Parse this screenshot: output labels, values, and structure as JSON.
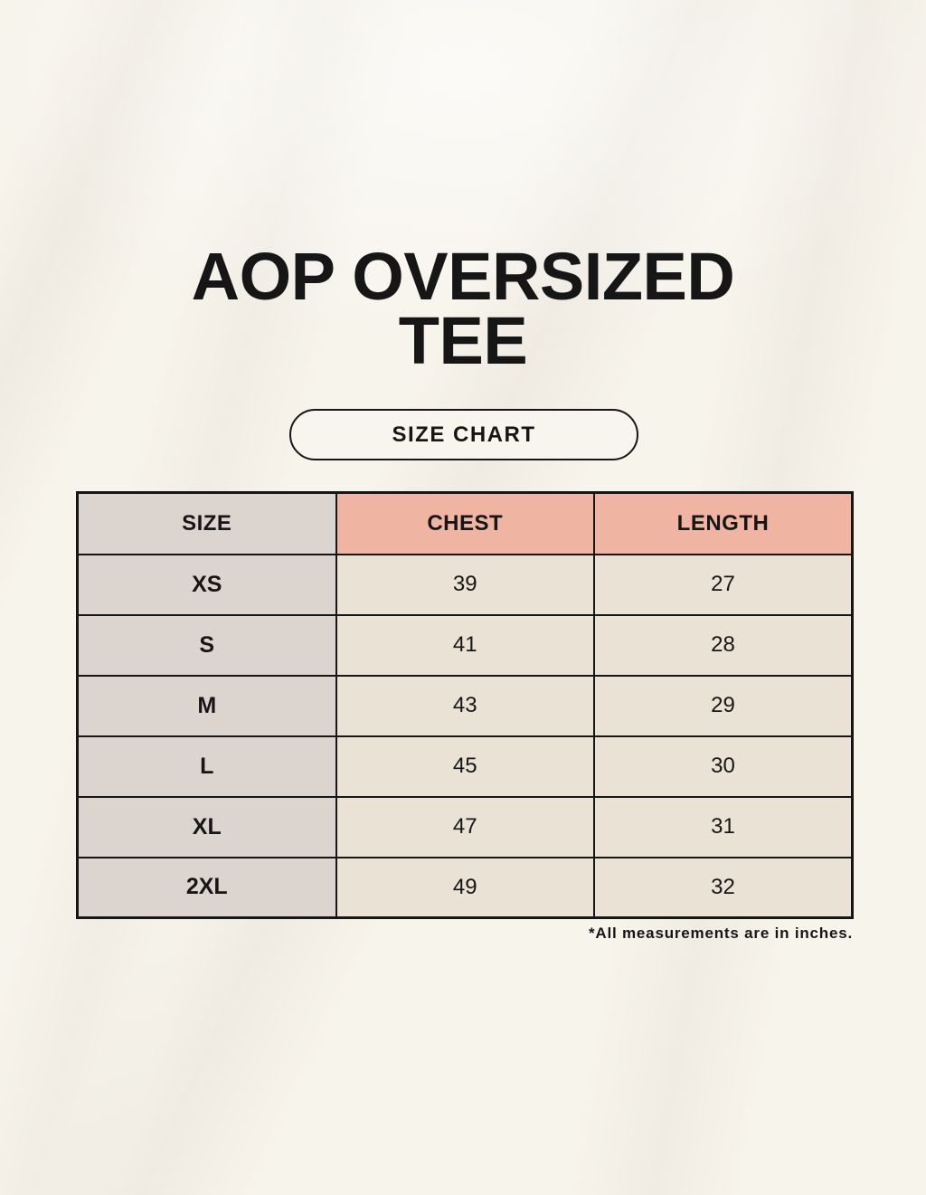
{
  "title": {
    "line1": "AOP OVERSIZED",
    "line2": "TEE"
  },
  "badge": {
    "label": "SIZE CHART"
  },
  "table": {
    "headers": {
      "size": "SIZE",
      "chest": "CHEST",
      "length": "LENGTH"
    },
    "rows": [
      {
        "size": "XS",
        "chest": "39",
        "length": "27"
      },
      {
        "size": "S",
        "chest": "41",
        "length": "28"
      },
      {
        "size": "M",
        "chest": "43",
        "length": "29"
      },
      {
        "size": "L",
        "chest": "45",
        "length": "30"
      },
      {
        "size": "XL",
        "chest": "47",
        "length": "31"
      },
      {
        "size": "2XL",
        "chest": "49",
        "length": "32"
      }
    ]
  },
  "footnote": "*All measurements are in inches.",
  "colors": {
    "background": "#f7f4ec",
    "header_accent": "#f0b4a2",
    "size_column": "#dcd5cf",
    "data_cell": "#e9e2d5",
    "border": "#161616",
    "text": "#161616",
    "badge_fill": "#f8f5ee"
  },
  "chart_data": {
    "type": "table",
    "title": "AOP OVERSIZED TEE",
    "subtitle": "SIZE CHART",
    "columns": [
      "SIZE",
      "CHEST",
      "LENGTH"
    ],
    "categories": [
      "XS",
      "S",
      "M",
      "L",
      "XL",
      "2XL"
    ],
    "series": [
      {
        "name": "CHEST",
        "values": [
          39,
          41,
          43,
          45,
          47,
          49
        ]
      },
      {
        "name": "LENGTH",
        "values": [
          27,
          28,
          29,
          30,
          31,
          32
        ]
      }
    ],
    "note": "*All measurements are in inches.",
    "units": "inches"
  }
}
